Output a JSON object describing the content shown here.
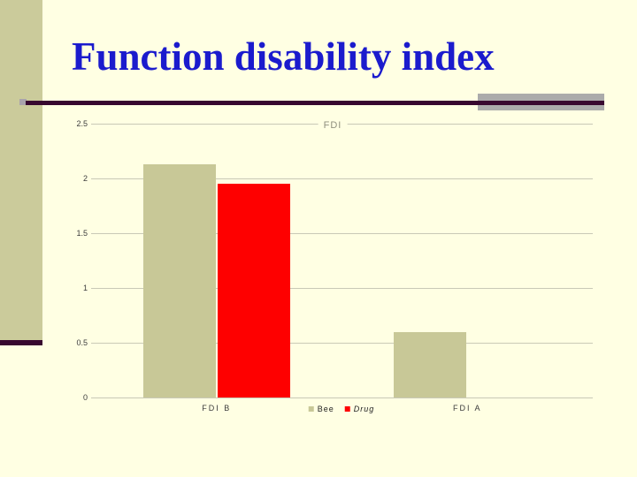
{
  "slide": {
    "title": "Function disability index"
  },
  "colors": {
    "background": "#FFFFE3",
    "sidebar_band": "#CBCB9B",
    "accent_rule": "#38082F",
    "rule_shadow": "#ABABAB",
    "title_text": "#1B1BCD",
    "grid_line": "#C9C9B6",
    "axis_text": "#3C3C3C",
    "bee_bar": "#C8C897",
    "drug_bar": "#FE0000"
  },
  "chart_data": {
    "type": "bar",
    "title": "FDI",
    "categories": [
      "FDI B",
      "FDI A"
    ],
    "series": [
      {
        "name": "Bee",
        "color": "#C8C897",
        "values": [
          2.13,
          0.6
        ],
        "italic": false
      },
      {
        "name": "Drug",
        "color": "#FE0000",
        "values": [
          1.95,
          0
        ],
        "italic": true
      }
    ],
    "ylim": [
      0,
      2.5
    ],
    "yticks": [
      0,
      0.5,
      1,
      1.5,
      2,
      2.5
    ],
    "ytick_labels": [
      "0",
      "0.5",
      "1",
      "1.5",
      "2",
      "2.5"
    ],
    "grid": true,
    "legend_position": "bottom-center"
  }
}
